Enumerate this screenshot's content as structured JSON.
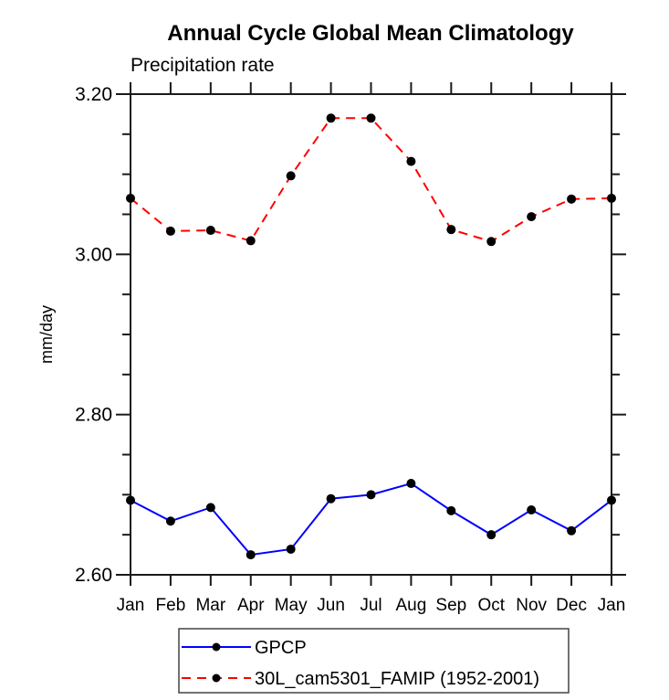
{
  "page": {
    "background": "#ffffff",
    "text_color": "#000000",
    "axis_color": "#1a1a1a",
    "legend_border_color": "#444444"
  },
  "chart_data": {
    "type": "line",
    "title": "Annual Cycle Global Mean Climatology",
    "subtitle": "Precipitation rate",
    "ylabel": "mm/day",
    "xlabel": "",
    "categories": [
      "Jan",
      "Feb",
      "Mar",
      "Apr",
      "May",
      "Jun",
      "Jul",
      "Aug",
      "Sep",
      "Oct",
      "Nov",
      "Dec",
      "Jan"
    ],
    "ylim": [
      2.6,
      3.2
    ],
    "y_major_ticks": [
      2.6,
      2.8,
      3.0,
      3.2
    ],
    "y_minor_step": 0.05,
    "y_tick_label_format": "2dp",
    "grid": false,
    "legend_position": "bottom-center-boxed",
    "marker": "filled-circle",
    "marker_color": "#000000",
    "series": [
      {
        "name": "GPCP",
        "color": "#0000ff",
        "line_style": "solid",
        "values": [
          2.693,
          2.667,
          2.684,
          2.625,
          2.632,
          2.695,
          2.7,
          2.714,
          2.68,
          2.65,
          2.681,
          2.655,
          2.693
        ]
      },
      {
        "name": "30L_cam5301_FAMIP (1952-2001)",
        "color": "#ff0000",
        "line_style": "dashed",
        "values": [
          3.07,
          3.029,
          3.03,
          3.017,
          3.098,
          3.17,
          3.17,
          3.116,
          3.031,
          3.016,
          3.047,
          3.069,
          3.07
        ]
      }
    ]
  }
}
